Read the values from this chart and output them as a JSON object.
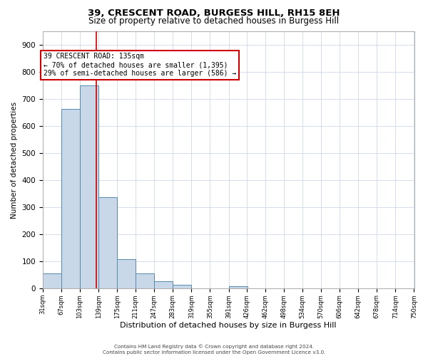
{
  "title_line1": "39, CRESCENT ROAD, BURGESS HILL, RH15 8EH",
  "title_line2": "Size of property relative to detached houses in Burgess Hill",
  "xlabel": "Distribution of detached houses by size in Burgess Hill",
  "ylabel": "Number of detached properties",
  "bin_edges": [
    31,
    67,
    103,
    139,
    175,
    211,
    247,
    283,
    319,
    355,
    391,
    426,
    462,
    498,
    534,
    570,
    606,
    642,
    678,
    714,
    750
  ],
  "bar_heights": [
    57,
    663,
    750,
    338,
    108,
    55,
    26,
    13,
    0,
    0,
    8,
    0,
    0,
    0,
    0,
    0,
    0,
    0,
    0,
    0
  ],
  "bar_color": "#c8d8e8",
  "bar_edge_color": "#5588aa",
  "property_size": 135,
  "vline_color": "#cc0000",
  "annotation_line1": "39 CRESCENT ROAD: 135sqm",
  "annotation_line2": "← 70% of detached houses are smaller (1,395)",
  "annotation_line3": "29% of semi-detached houses are larger (586) →",
  "annotation_box_color": "#ffffff",
  "annotation_box_edge_color": "#cc0000",
  "ylim": [
    0,
    950
  ],
  "yticks": [
    0,
    100,
    200,
    300,
    400,
    500,
    600,
    700,
    800,
    900
  ],
  "footnote_line1": "Contains HM Land Registry data © Crown copyright and database right 2024.",
  "footnote_line2": "Contains public sector information licensed under the Open Government Licence v3.0.",
  "bg_color": "#ffffff",
  "grid_color": "#d0d8e8",
  "title_fontsize": 9.5,
  "subtitle_fontsize": 8.5
}
